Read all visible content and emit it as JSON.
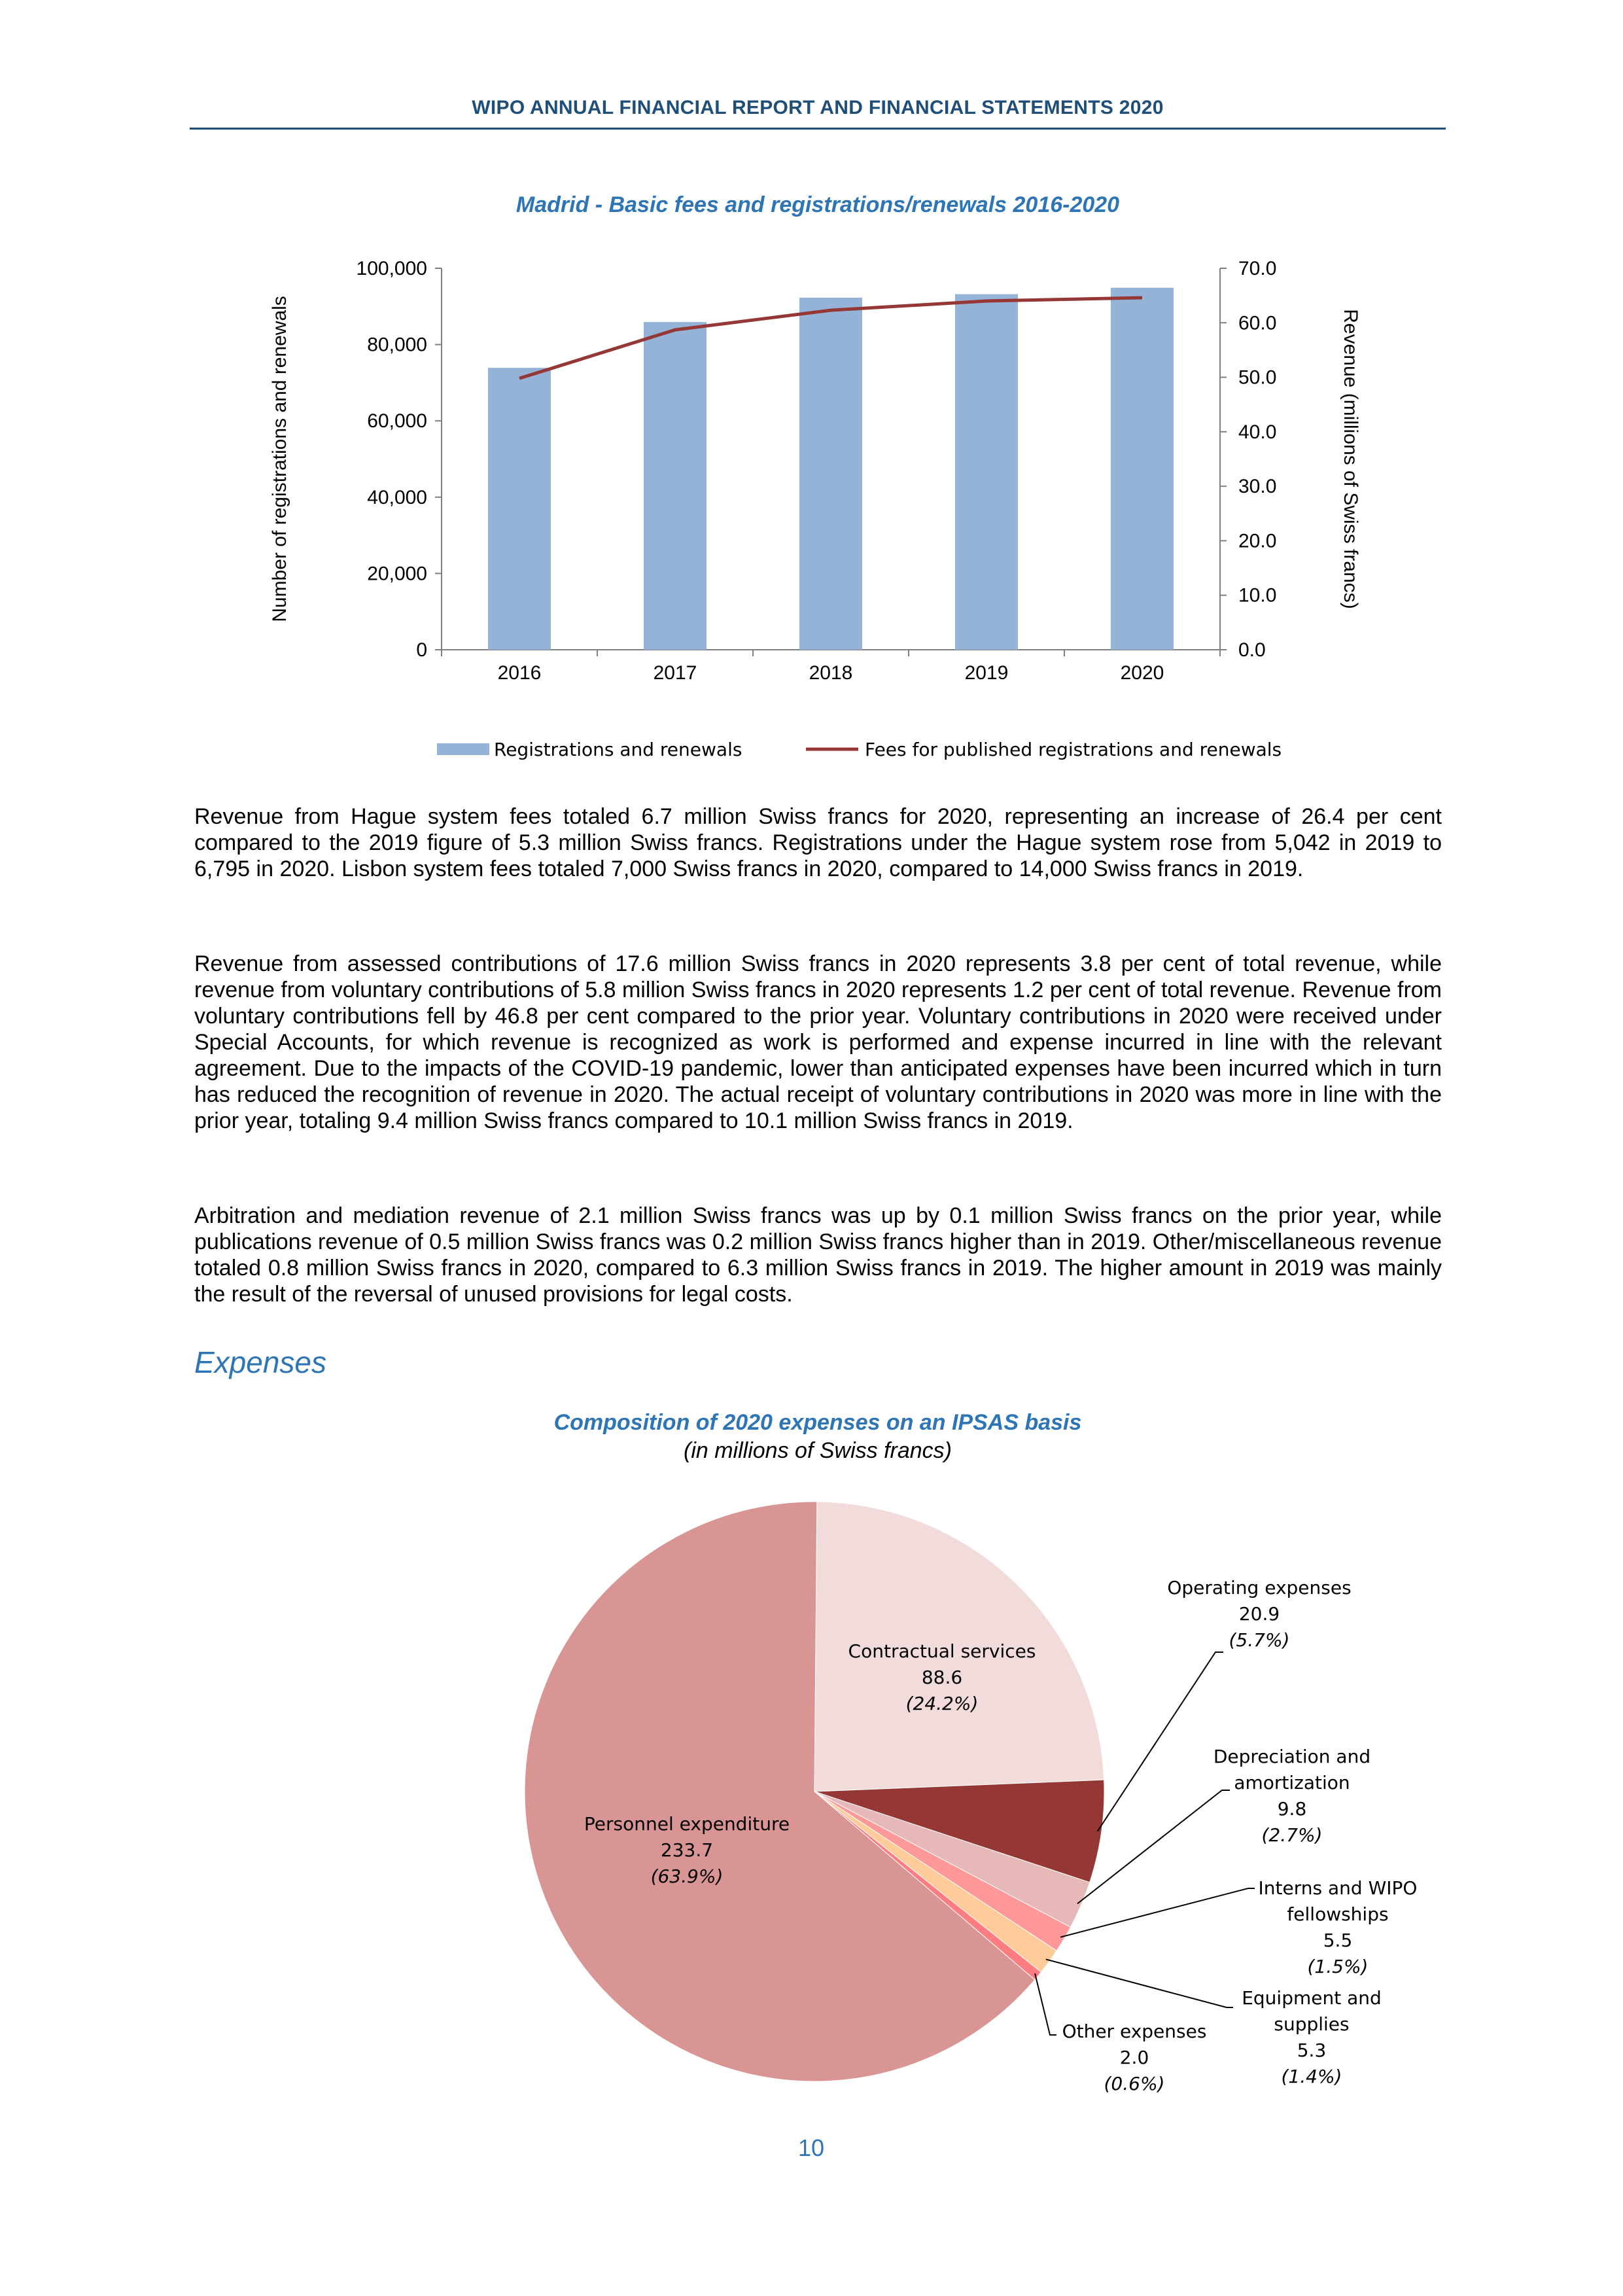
{
  "header": {
    "title": "WIPO ANNUAL FINANCIAL REPORT AND FINANCIAL STATEMENTS 2020"
  },
  "chart1": {
    "title": "Madrid - Basic fees and registrations/renewals 2016-2020"
  },
  "chart_data": [
    {
      "type": "bar",
      "title": "Madrid - Basic fees and registrations/renewals 2016-2020",
      "categories": [
        "2016",
        "2017",
        "2018",
        "2019",
        "2020"
      ],
      "ylabel": "Number of registrations and renewals",
      "y2label": "Revenue (millions of Swiss francs)",
      "ylim": [
        0,
        100000
      ],
      "y2lim": [
        0,
        70
      ],
      "yticks": [
        "0",
        "20,000",
        "40,000",
        "60,000",
        "80,000",
        "100,000"
      ],
      "y2ticks": [
        "0.0",
        "10.0",
        "20.0",
        "30.0",
        "40.0",
        "50.0",
        "60.0",
        "70.0"
      ],
      "legend_position": "bottom",
      "series": [
        {
          "name": "Registrations and renewals",
          "type": "bar",
          "axis": "left",
          "color": "#95b3d7",
          "values": [
            73900,
            85900,
            92300,
            93200,
            94900
          ]
        },
        {
          "name": "Fees for published registrations and renewals",
          "type": "line",
          "axis": "right",
          "color": "#953735",
          "values": [
            49.8,
            58.7,
            62.3,
            64.0,
            64.6
          ]
        }
      ]
    },
    {
      "type": "pie",
      "title": "Composition of 2020 expenses on an IPSAS basis",
      "subtitle": "(in millions of Swiss francs)",
      "slices": [
        {
          "label": "Contractual services",
          "value": 88.6,
          "percent": "(24.2%)",
          "color": "#f2dcdb"
        },
        {
          "label": "Operating expenses",
          "value": 20.9,
          "percent": "(5.7%)",
          "color": "#953735"
        },
        {
          "label": "Depreciation and amortization",
          "value": 9.8,
          "percent": "(2.7%)",
          "color": "#e6b9b8"
        },
        {
          "label": "Interns and WIPO fellowships",
          "value": 5.5,
          "percent": "(1.5%)",
          "color": "#ff9999"
        },
        {
          "label": "Equipment and supplies",
          "value": 5.3,
          "percent": "(1.4%)",
          "color": "#ffcc99"
        },
        {
          "label": "Other expenses",
          "value": 2.0,
          "percent": "(0.6%)",
          "color": "#ff7c80"
        },
        {
          "label": "Personnel expenditure",
          "value": 233.7,
          "percent": "(63.9%)",
          "color": "#d99594"
        }
      ]
    }
  ],
  "chart2": {
    "title": "Composition of 2020 expenses on an IPSAS basis",
    "subtitle": "(in millions of Swiss francs)"
  },
  "paragraphs": [
    "Revenue from Hague system fees totaled 6.7 million Swiss francs for 2020, representing an increase of 26.4 per cent compared to the 2019 figure of 5.3 million Swiss francs. Registrations under the Hague system rose from 5,042 in 2019 to 6,795 in 2020. Lisbon system fees totaled 7,000 Swiss francs in 2020, compared to 14,000 Swiss francs in 2019.",
    "Revenue from assessed contributions of 17.6 million Swiss francs in 2020 represents 3.8 per cent of total revenue, while revenue from voluntary contributions of 5.8 million Swiss francs in 2020 represents 1.2 per cent of total revenue. Revenue from voluntary contributions fell by 46.8 per cent compared to the prior year. Voluntary contributions in 2020 were received under Special Accounts, for which revenue is recognized as work is performed and expense incurred in line with the relevant agreement. Due to the impacts of the COVID-19 pandemic, lower than anticipated expenses have been incurred which in turn has reduced the recognition of revenue in 2020. The actual receipt of voluntary contributions in 2020 was more in line with the prior year, totaling 9.4 million Swiss francs compared to 10.1 million Swiss francs in 2019.",
    "Arbitration and mediation revenue of 2.1 million Swiss francs was up by 0.1 million Swiss francs on the prior year, while publications revenue of 0.5 million Swiss francs was 0.2 million Swiss francs higher than in 2019. Other/miscellaneous revenue totaled 0.8 million Swiss francs in 2020, compared to 6.3 million Swiss francs in 2019. The higher amount in 2019 was mainly the result of the reversal of unused provisions for legal costs."
  ],
  "section": {
    "title": "Expenses"
  },
  "footer": {
    "page_number": "10"
  }
}
